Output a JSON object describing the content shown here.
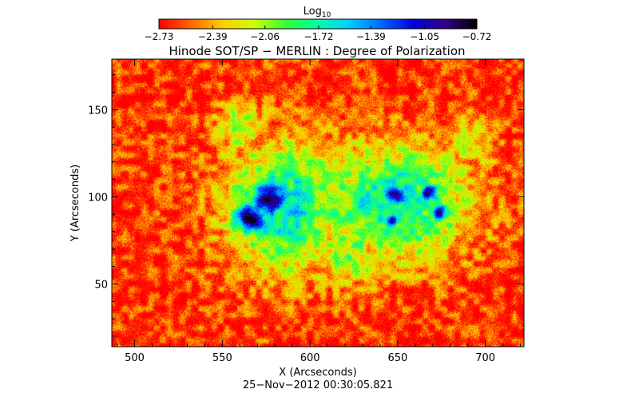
{
  "chart_data": {
    "type": "heatmap",
    "title": "Hinode SOT/SP − MERLIN : Degree of Polarization",
    "xlabel": "X (Arcseconds)",
    "ylabel": "Y (Arcseconds)",
    "timestamp": "25−Nov−2012 00:30:05.821",
    "xlim": [
      487,
      722
    ],
    "ylim": [
      14,
      179
    ],
    "x_ticks": [
      {
        "value": 500,
        "label": "500"
      },
      {
        "value": 550,
        "label": "550"
      },
      {
        "value": 600,
        "label": "600"
      },
      {
        "value": 650,
        "label": "650"
      },
      {
        "value": 700,
        "label": "700"
      }
    ],
    "y_ticks": [
      {
        "value": 50,
        "label": "50"
      },
      {
        "value": 100,
        "label": "100"
      },
      {
        "value": 150,
        "label": "150"
      }
    ],
    "colorbar": {
      "label_main": "Log",
      "label_sub": "10",
      "range": [
        -2.73,
        -0.72
      ],
      "tick_labels": [
        "−2.73",
        "−2.39",
        "−2.06",
        "−1.72",
        "−1.39",
        "−1.05",
        "−0.72"
      ],
      "tick_values": [
        -2.73,
        -2.39,
        -2.06,
        -1.72,
        -1.39,
        -1.05,
        -0.72
      ],
      "colors": [
        "#ff0000",
        "#ff6600",
        "#ffcc00",
        "#ccff00",
        "#33ff33",
        "#00ffaa",
        "#00ccff",
        "#0066ff",
        "#0000dd",
        "#330088",
        "#000000"
      ]
    },
    "background_level": -2.65,
    "features": [
      {
        "x": 566,
        "y": 88,
        "sx": 8,
        "sy": 7,
        "level": -0.85
      },
      {
        "x": 577,
        "y": 99,
        "sx": 9,
        "sy": 8,
        "level": -0.88
      },
      {
        "x": 648,
        "y": 101,
        "sx": 6,
        "sy": 6,
        "level": -0.95
      },
      {
        "x": 668,
        "y": 102,
        "sx": 4.5,
        "sy": 4.5,
        "level": -1.0
      },
      {
        "x": 674,
        "y": 91,
        "sx": 4,
        "sy": 4,
        "level": -1.02
      },
      {
        "x": 646,
        "y": 86,
        "sx": 4,
        "sy": 4,
        "level": -1.05
      },
      {
        "x": 585,
        "y": 95,
        "sx": 24,
        "sy": 26,
        "level": -1.6
      },
      {
        "x": 648,
        "y": 97,
        "sx": 30,
        "sy": 24,
        "level": -1.65
      },
      {
        "x": 614,
        "y": 100,
        "sx": 20,
        "sy": 22,
        "level": -1.95
      },
      {
        "x": 622,
        "y": 70,
        "sx": 14,
        "sy": 16,
        "level": -2.0
      },
      {
        "x": 560,
        "y": 140,
        "sx": 10,
        "sy": 12,
        "level": -2.1
      },
      {
        "x": 690,
        "y": 130,
        "sx": 12,
        "sy": 10,
        "level": -2.2
      }
    ]
  }
}
